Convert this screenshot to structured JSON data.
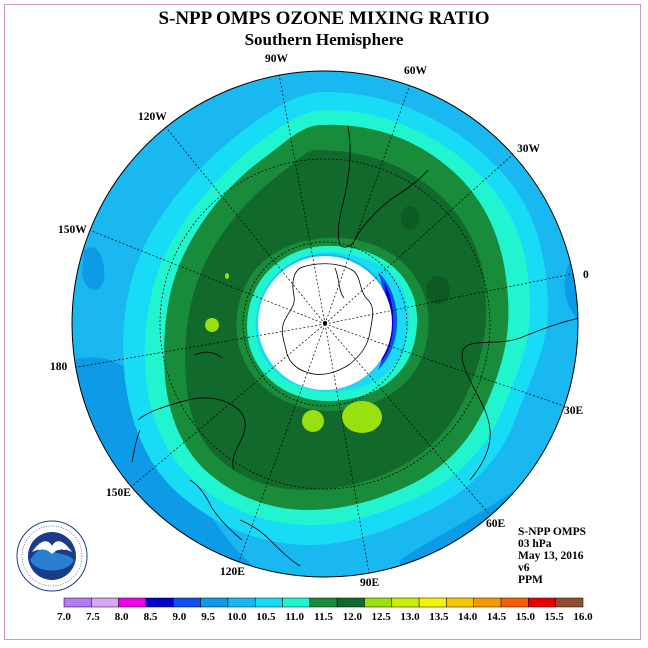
{
  "title": "S-NPP OMPS OZONE MIXING RATIO",
  "subtitle": "Southern Hemisphere",
  "lon_labels": [
    "90W",
    "60W",
    "30W",
    "0",
    "30E",
    "60E",
    "90E",
    "120E",
    "150E",
    "180",
    "150W",
    "120W"
  ],
  "logo_text": "NOAA",
  "info": {
    "instrument": "S-NPP OMPS",
    "level": "03 hPa",
    "date": "May 13, 2016",
    "version": "v6",
    "units": "PPM"
  },
  "colorbar": {
    "ticks": [
      "7.0",
      "7.5",
      "8.0",
      "8.5",
      "9.0",
      "9.5",
      "10.0",
      "10.5",
      "11.0",
      "11.5",
      "12.0",
      "12.5",
      "13.0",
      "13.5",
      "14.0",
      "14.5",
      "15.0",
      "15.5",
      "16.0"
    ],
    "colors": [
      "#b57bf2",
      "#d8a8f4",
      "#ee00ee",
      "#0000cc",
      "#1050f0",
      "#0d9ae6",
      "#1ab8f0",
      "#18dcf6",
      "#20f5d0",
      "#198c3c",
      "#12692c",
      "#9ae00e",
      "#c8f000",
      "#f4f400",
      "#f4c800",
      "#f49800",
      "#f46000",
      "#e80000",
      "#8c5030"
    ]
  }
}
